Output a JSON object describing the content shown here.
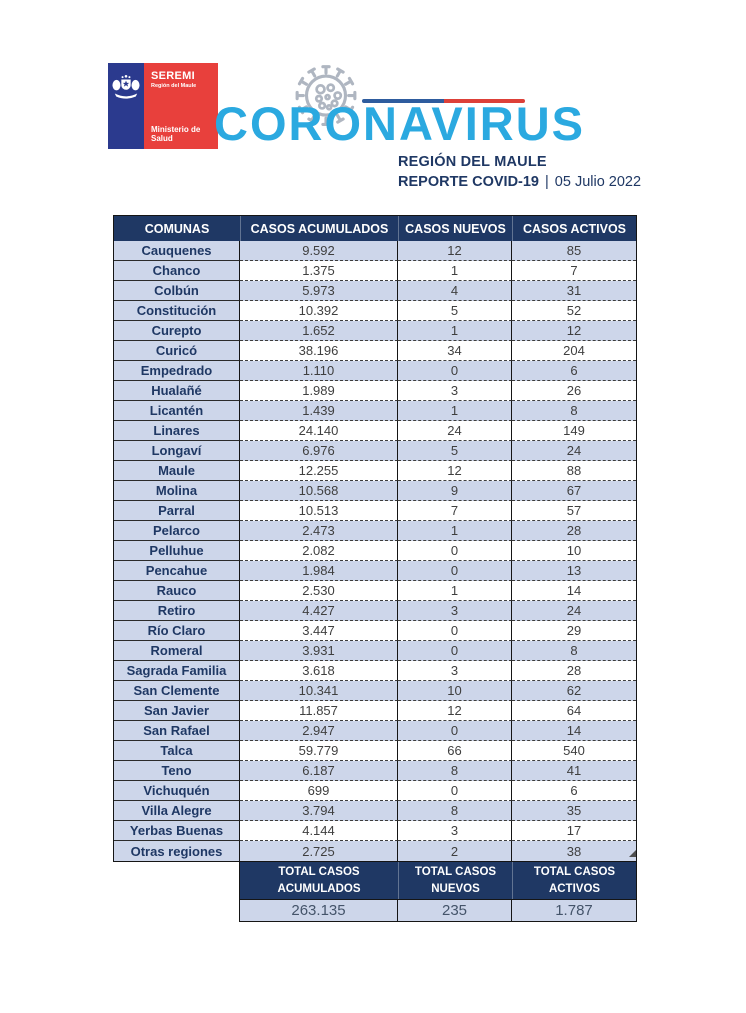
{
  "header": {
    "logo": {
      "seremi": "SEREMI",
      "region": "Región del Maule",
      "ministry_line1": "Ministerio de",
      "ministry_line2": "Salud",
      "blue": "#2B3A8E",
      "red": "#E8403C"
    },
    "title": "CORONAVIRUS",
    "title_color": "#2BA9E0",
    "region_title": "REGIÓN DEL MAULE",
    "report_label": "REPORTE COVID-19",
    "report_separator": "|",
    "report_date": "05 Julio 2022",
    "flag_line_blue": "#2E5C9E",
    "flag_line_red": "#DD4038"
  },
  "table": {
    "header_bg": "#1F3864",
    "alt_row_bg": "#CDD6EA",
    "columns": [
      "COMUNAS",
      "CASOS ACUMULADOS",
      "CASOS NUEVOS",
      "CASOS ACTIVOS"
    ],
    "rows": [
      [
        "Cauquenes",
        "9.592",
        "12",
        "85"
      ],
      [
        "Chanco",
        "1.375",
        "1",
        "7"
      ],
      [
        "Colbún",
        "5.973",
        "4",
        "31"
      ],
      [
        "Constitución",
        "10.392",
        "5",
        "52"
      ],
      [
        "Curepto",
        "1.652",
        "1",
        "12"
      ],
      [
        "Curicó",
        "38.196",
        "34",
        "204"
      ],
      [
        "Empedrado",
        "1.110",
        "0",
        "6"
      ],
      [
        "Hualañé",
        "1.989",
        "3",
        "26"
      ],
      [
        "Licantén",
        "1.439",
        "1",
        "8"
      ],
      [
        "Linares",
        "24.140",
        "24",
        "149"
      ],
      [
        "Longaví",
        "6.976",
        "5",
        "24"
      ],
      [
        "Maule",
        "12.255",
        "12",
        "88"
      ],
      [
        "Molina",
        "10.568",
        "9",
        "67"
      ],
      [
        "Parral",
        "10.513",
        "7",
        "57"
      ],
      [
        "Pelarco",
        "2.473",
        "1",
        "28"
      ],
      [
        "Pelluhue",
        "2.082",
        "0",
        "10"
      ],
      [
        "Pencahue",
        "1.984",
        "0",
        "13"
      ],
      [
        "Rauco",
        "2.530",
        "1",
        "14"
      ],
      [
        "Retiro",
        "4.427",
        "3",
        "24"
      ],
      [
        "Río Claro",
        "3.447",
        "0",
        "29"
      ],
      [
        "Romeral",
        "3.931",
        "0",
        "8"
      ],
      [
        "Sagrada Familia",
        "3.618",
        "3",
        "28"
      ],
      [
        "San Clemente",
        "10.341",
        "10",
        "62"
      ],
      [
        "San Javier",
        "11.857",
        "12",
        "64"
      ],
      [
        "San Rafael",
        "2.947",
        "0",
        "14"
      ],
      [
        "Talca",
        "59.779",
        "66",
        "540"
      ],
      [
        "Teno",
        "6.187",
        "8",
        "41"
      ],
      [
        "Vichuquén",
        "699",
        "0",
        "6"
      ],
      [
        "Villa Alegre",
        "3.794",
        "8",
        "35"
      ],
      [
        "Yerbas Buenas",
        "4.144",
        "3",
        "17"
      ],
      [
        "Otras regiones",
        "2.725",
        "2",
        "38"
      ]
    ],
    "totals": {
      "labels": [
        {
          "line1": "TOTAL CASOS",
          "line2": "ACUMULADOS"
        },
        {
          "line1": "TOTAL CASOS",
          "line2": "NUEVOS"
        },
        {
          "line1": "TOTAL CASOS",
          "line2": "ACTIVOS"
        }
      ],
      "values": [
        "263.135",
        "235",
        "1.787"
      ]
    }
  }
}
